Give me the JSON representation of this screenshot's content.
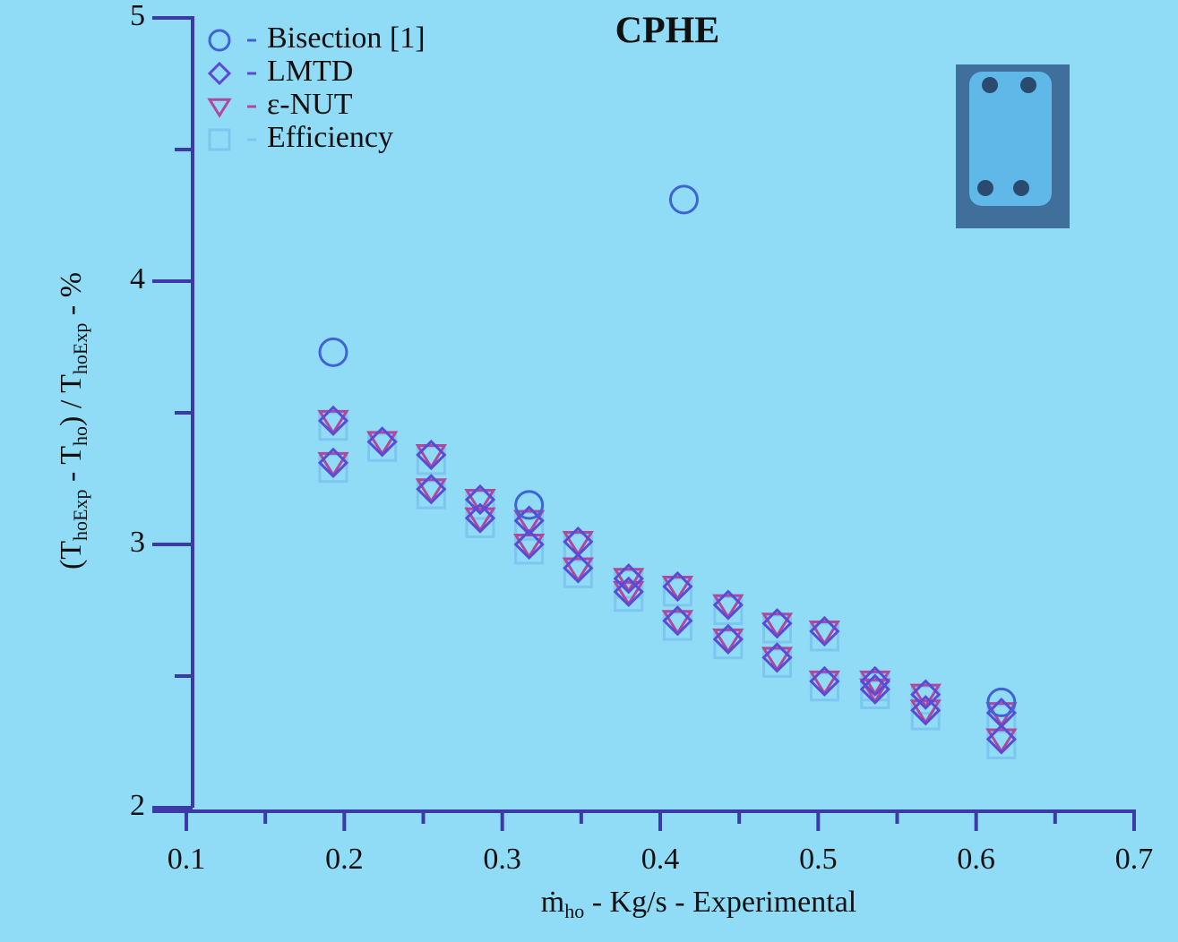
{
  "chart_data": {
    "type": "scatter",
    "title": "CPHE",
    "x_label": [
      "ṁ",
      "ho",
      " - Kg/s - Experimental"
    ],
    "y_label": [
      "(T",
      "hoExp",
      " - T",
      "ho",
      ") / T",
      "hoExp",
      " - %"
    ],
    "xlim": [
      0.1,
      0.7
    ],
    "xticks": [
      0.1,
      0.2,
      0.3,
      0.4,
      0.5,
      0.6,
      0.7
    ],
    "xminorticks": [
      0.15,
      0.25,
      0.35,
      0.45,
      0.55,
      0.65
    ],
    "ylim": [
      2,
      5
    ],
    "yticks": [
      2,
      3,
      4,
      5
    ],
    "yminorticks": [
      2.5,
      3.5,
      4.5
    ],
    "legend": "upper left",
    "series": [
      {
        "name": "Bisection [1]",
        "marker": "circle",
        "color": "#3f63d6",
        "x": [
          0.193,
          0.317,
          0.415,
          0.616
        ],
        "values": [
          3.73,
          3.15,
          4.31,
          2.4
        ]
      },
      {
        "name": "LMTD",
        "marker": "diamond",
        "color": "#5a4ad6",
        "x": [
          0.193,
          0.193,
          0.224,
          0.255,
          0.255,
          0.286,
          0.286,
          0.317,
          0.317,
          0.348,
          0.348,
          0.38,
          0.38,
          0.411,
          0.411,
          0.443,
          0.443,
          0.474,
          0.474,
          0.504,
          0.504,
          0.536,
          0.536,
          0.568,
          0.568,
          0.616,
          0.616
        ],
        "values": [
          3.47,
          3.31,
          3.39,
          3.34,
          3.21,
          3.17,
          3.1,
          3.09,
          3.0,
          3.01,
          2.91,
          2.87,
          2.82,
          2.84,
          2.71,
          2.77,
          2.64,
          2.7,
          2.57,
          2.67,
          2.48,
          2.48,
          2.45,
          2.43,
          2.37,
          2.36,
          2.26
        ]
      },
      {
        "name": "ε-NUT",
        "marker": "triangle",
        "color": "#b0489e",
        "x": [
          0.193,
          0.193,
          0.224,
          0.255,
          0.255,
          0.286,
          0.286,
          0.317,
          0.317,
          0.348,
          0.348,
          0.38,
          0.38,
          0.411,
          0.411,
          0.443,
          0.443,
          0.474,
          0.474,
          0.504,
          0.504,
          0.536,
          0.536,
          0.568,
          0.568,
          0.616,
          0.616
        ],
        "values": [
          3.47,
          3.31,
          3.39,
          3.34,
          3.21,
          3.17,
          3.1,
          3.09,
          3.0,
          3.01,
          2.91,
          2.87,
          2.82,
          2.84,
          2.71,
          2.77,
          2.64,
          2.7,
          2.57,
          2.67,
          2.48,
          2.48,
          2.45,
          2.43,
          2.37,
          2.36,
          2.26
        ]
      },
      {
        "name": "Efficiency",
        "marker": "square",
        "color": "#7cc6f0",
        "x": [
          0.193,
          0.193,
          0.224,
          0.255,
          0.255,
          0.286,
          0.286,
          0.317,
          0.317,
          0.348,
          0.348,
          0.38,
          0.38,
          0.411,
          0.411,
          0.443,
          0.443,
          0.474,
          0.474,
          0.504,
          0.504,
          0.536,
          0.536,
          0.568,
          0.568,
          0.616,
          0.616
        ],
        "values": [
          3.45,
          3.29,
          3.37,
          3.32,
          3.19,
          3.15,
          3.08,
          3.07,
          2.98,
          2.99,
          2.89,
          2.85,
          2.8,
          2.82,
          2.69,
          2.75,
          2.62,
          2.68,
          2.55,
          2.65,
          2.46,
          2.46,
          2.43,
          2.41,
          2.35,
          2.34,
          2.24
        ]
      }
    ]
  }
}
